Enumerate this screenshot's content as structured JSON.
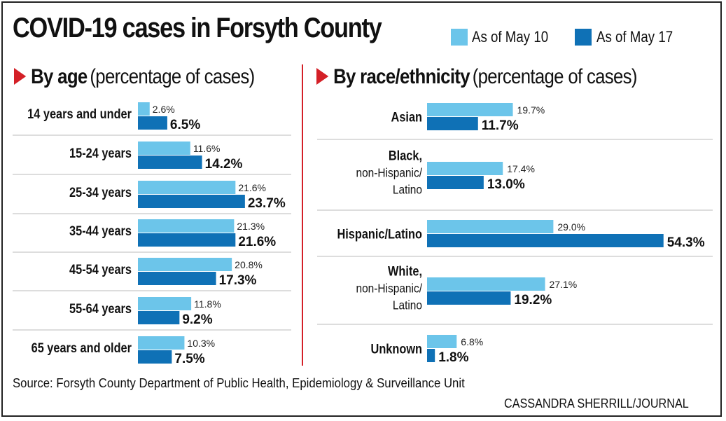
{
  "title": "COVID-19 cases in Forsyth County",
  "legend": {
    "items": [
      {
        "label": "As of May 10",
        "color": "#6cc5ea"
      },
      {
        "label": "As of May 17",
        "color": "#0f71b6"
      }
    ]
  },
  "footer": {
    "source": "Source: Forsyth County Department of Public Health, Epidemiology & Surveillance Unit",
    "credit": "CASSANDRA SHERRILL/JOURNAL"
  },
  "chart_data": [
    {
      "type": "bar",
      "orientation": "horizontal",
      "title_bold": "By age",
      "title_light": "(percentage of cases)",
      "unit": "%",
      "categories": [
        "14 years and under",
        "15-24 years",
        "25-34 years",
        "35-44 years",
        "45-54 years",
        "55-64 years",
        "65 years and older"
      ],
      "series": [
        {
          "name": "As of May 10",
          "values": [
            2.6,
            11.6,
            21.6,
            21.3,
            20.8,
            11.8,
            10.3
          ],
          "labels": [
            "2.6%",
            "11.6%",
            "21.6%",
            "21.3%",
            "20.8%",
            "11.8%",
            "10.3%"
          ]
        },
        {
          "name": "As of May 17",
          "values": [
            6.5,
            14.2,
            23.7,
            21.6,
            17.3,
            9.2,
            7.5
          ],
          "labels": [
            "6.5%",
            "14.2%",
            "23.7%",
            "21.6%",
            "17.3%",
            "9.2%",
            "7.5%"
          ]
        }
      ]
    },
    {
      "type": "bar",
      "orientation": "horizontal",
      "title_bold": "By race/ethnicity",
      "title_light": "(percentage of cases)",
      "unit": "%",
      "categories": [
        {
          "lines": [
            "Asian"
          ]
        },
        {
          "lines": [
            "Black,",
            "non-Hispanic/",
            "Latino"
          ]
        },
        {
          "lines": [
            "Hispanic/Latino"
          ]
        },
        {
          "lines": [
            "White,",
            "non-Hispanic/",
            "Latino"
          ]
        },
        {
          "lines": [
            "Unknown"
          ]
        }
      ],
      "series": [
        {
          "name": "As of May 10",
          "values": [
            19.7,
            17.4,
            29.0,
            27.1,
            6.8
          ],
          "labels": [
            "19.7%",
            "17.4%",
            "29.0%",
            "27.1%",
            "6.8%"
          ]
        },
        {
          "name": "As of May 17",
          "values": [
            11.7,
            13.0,
            54.3,
            19.2,
            1.8
          ],
          "labels": [
            "11.7%",
            "13.0%",
            "54.3%",
            "19.2%",
            "1.8%"
          ]
        }
      ]
    }
  ]
}
